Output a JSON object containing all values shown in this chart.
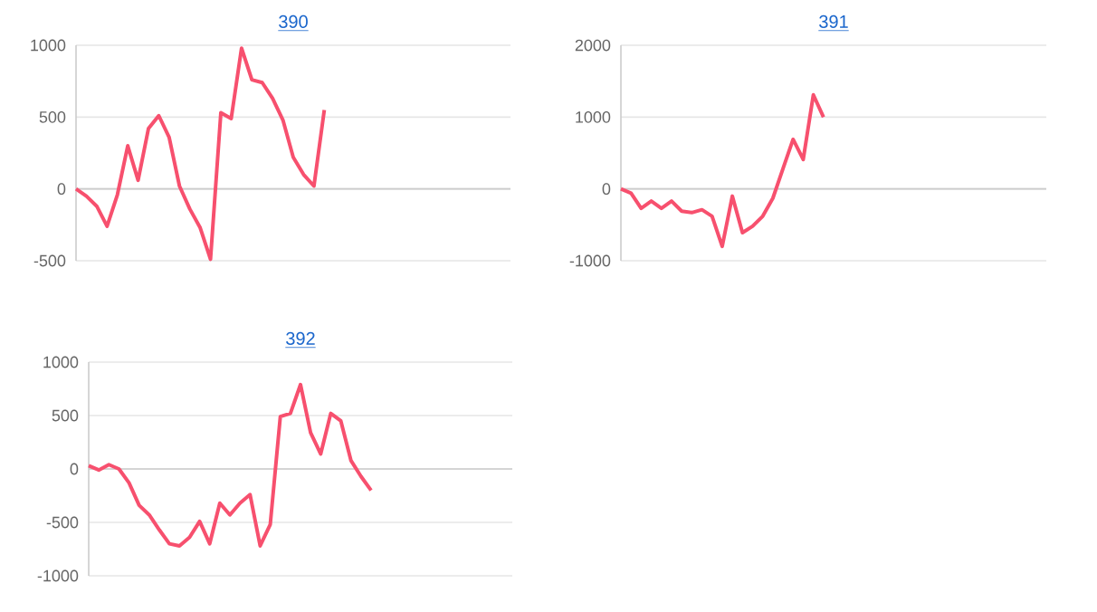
{
  "chart_data": [
    {
      "type": "line",
      "title": "390",
      "categories": [
        null,
        null,
        null,
        null,
        null,
        null,
        null,
        null,
        null,
        null,
        null,
        null,
        null,
        null,
        null,
        null,
        null,
        null,
        null,
        null,
        null,
        null,
        null,
        null,
        null,
        null,
        null,
        null,
        null,
        null,
        null,
        null,
        null,
        null,
        null,
        null,
        null,
        null,
        null,
        null,
        null,
        null,
        null
      ],
      "series": [
        {
          "color": "#f7506e",
          "values": [
            0,
            -50,
            -120,
            -260,
            -40,
            300,
            60,
            420,
            510,
            360,
            20,
            -140,
            -270,
            -490,
            530,
            490,
            980,
            760,
            740,
            630,
            480,
            220,
            100,
            20,
            550,
            null,
            null,
            null,
            null,
            null,
            null,
            null,
            null,
            null,
            null,
            null,
            null,
            null,
            null,
            null,
            null,
            null,
            null
          ]
        }
      ],
      "ylim": [
        -500,
        1000
      ],
      "yticks": [
        -500,
        0,
        500,
        1000
      ],
      "grid": "y",
      "tick_labels": "y",
      "marker": "none",
      "line_style": "solid"
    },
    {
      "type": "line",
      "title": "391",
      "categories": [
        null,
        null,
        null,
        null,
        null,
        null,
        null,
        null,
        null,
        null,
        null,
        null,
        null,
        null,
        null,
        null,
        null,
        null,
        null,
        null,
        null,
        null,
        null,
        null,
        null,
        null,
        null,
        null,
        null,
        null,
        null,
        null,
        null,
        null,
        null,
        null,
        null,
        null,
        null,
        null,
        null,
        null,
        null
      ],
      "series": [
        {
          "color": "#f7506e",
          "values": [
            0,
            -60,
            -270,
            -170,
            -270,
            -170,
            -310,
            -330,
            -290,
            -380,
            -800,
            -100,
            -610,
            -520,
            -380,
            -130,
            280,
            690,
            410,
            1310,
            1000,
            null,
            null,
            null,
            null,
            null,
            null,
            null,
            null,
            null,
            null,
            null,
            null,
            null,
            null,
            null,
            null,
            null,
            null,
            null,
            null,
            null,
            null
          ]
        }
      ],
      "ylim": [
        -1000,
        2000
      ],
      "yticks": [
        -1000,
        0,
        1000,
        2000
      ],
      "grid": "y",
      "tick_labels": "y",
      "marker": "none",
      "line_style": "solid"
    },
    {
      "type": "line",
      "title": "392",
      "categories": [
        null,
        null,
        null,
        null,
        null,
        null,
        null,
        null,
        null,
        null,
        null,
        null,
        null,
        null,
        null,
        null,
        null,
        null,
        null,
        null,
        null,
        null,
        null,
        null,
        null,
        null,
        null,
        null,
        null,
        null,
        null,
        null,
        null,
        null,
        null,
        null,
        null,
        null,
        null,
        null,
        null,
        null,
        null
      ],
      "series": [
        {
          "color": "#f7506e",
          "values": [
            30,
            -10,
            40,
            0,
            -130,
            -340,
            -430,
            -570,
            -700,
            -720,
            -640,
            -490,
            -700,
            -320,
            -430,
            -320,
            -240,
            -720,
            -520,
            490,
            520,
            790,
            340,
            140,
            520,
            450,
            80,
            -70,
            -200,
            null,
            null,
            null,
            null,
            null,
            null,
            null,
            null,
            null,
            null,
            null,
            null,
            null,
            null
          ]
        }
      ],
      "ylim": [
        -1000,
        1000
      ],
      "yticks": [
        -1000,
        -500,
        0,
        500,
        1000
      ],
      "grid": "y",
      "tick_labels": "y",
      "marker": "none",
      "line_style": "solid"
    }
  ]
}
